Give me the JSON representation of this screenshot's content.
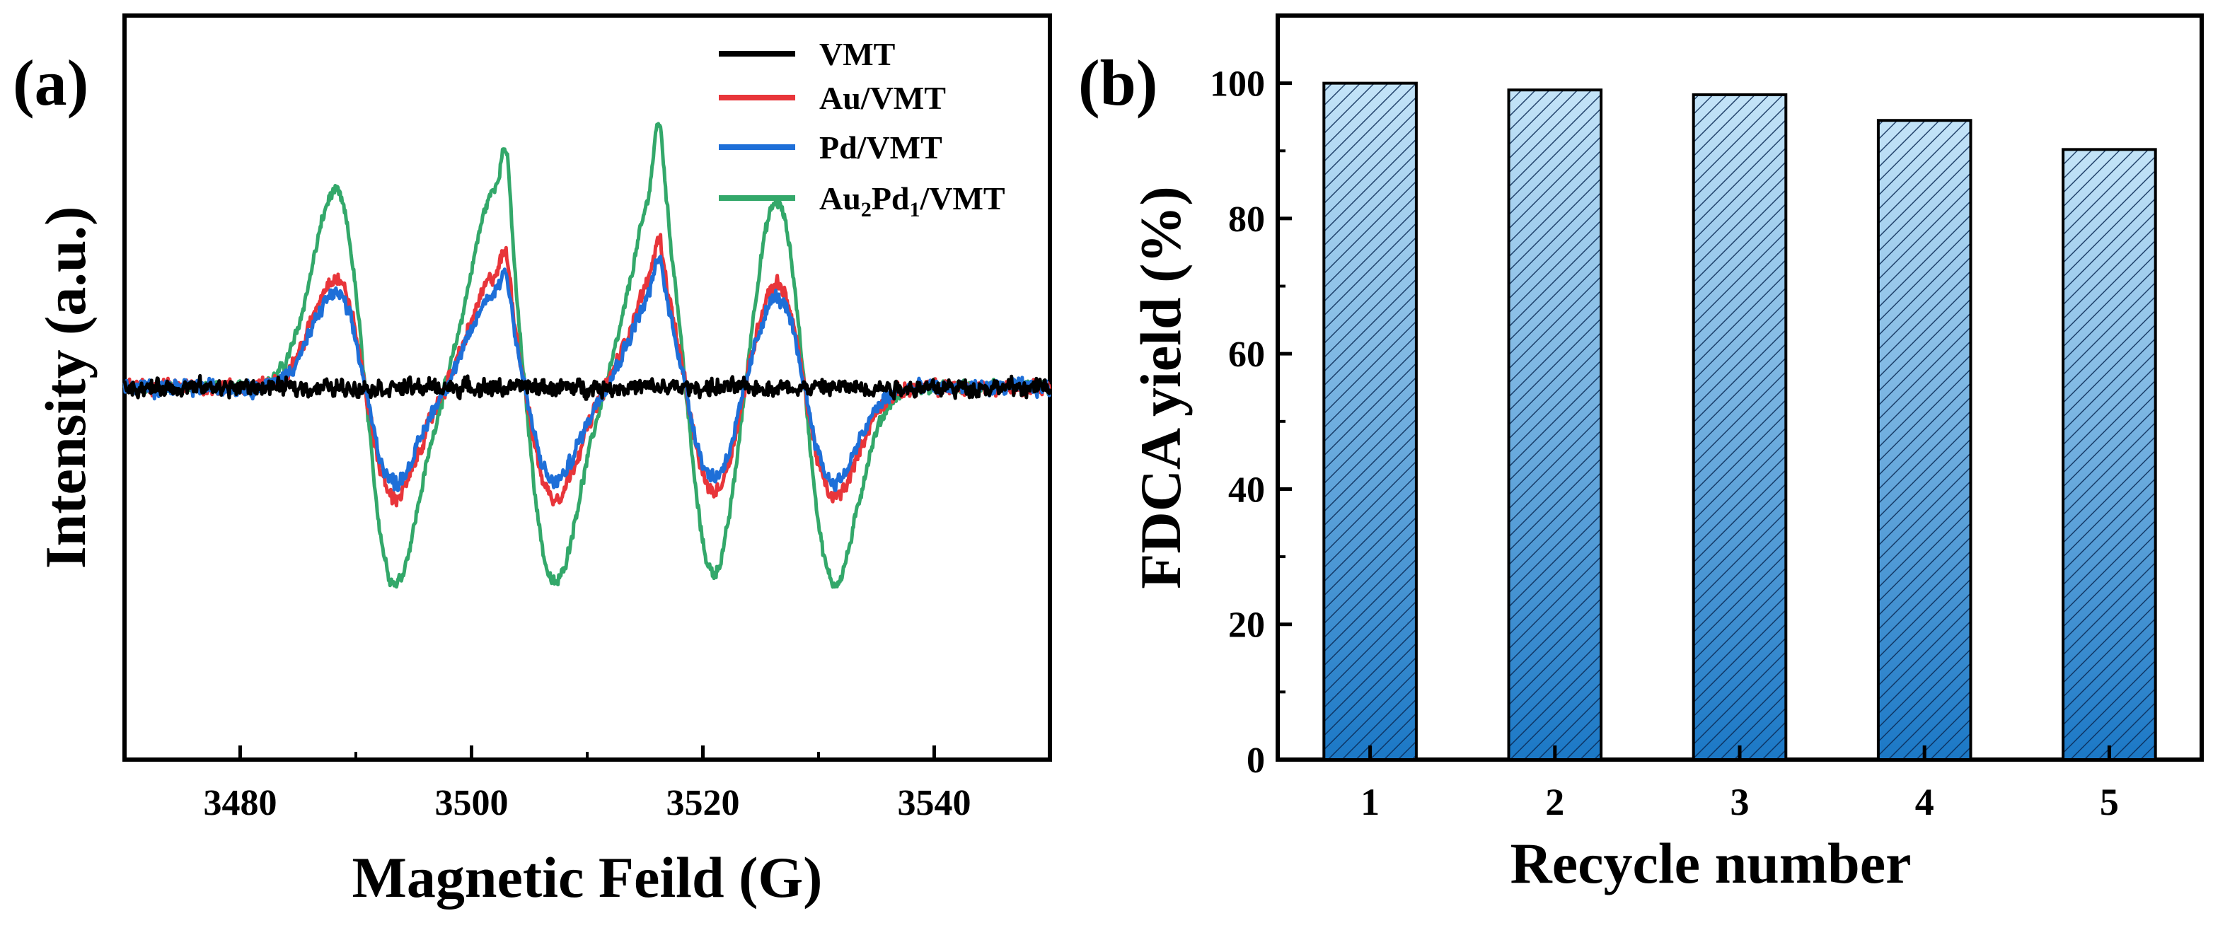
{
  "colors": {
    "vmt": "#000000",
    "au_vmt": "#e8353a",
    "pd_vmt": "#1e6fd8",
    "au2pd1_vmt": "#33a86a",
    "bar_top": "#c4e4f8",
    "bar_bottom": "#1b78c6"
  },
  "chart_data": [
    {
      "type": "line",
      "panel_label": "(a)",
      "title": "",
      "xlabel": "Magnetic Feild (G)",
      "ylabel": "Intensity (a.u.)",
      "xlim": [
        3470,
        3550
      ],
      "ylim": [
        -2.05,
        2.05
      ],
      "xticks": [
        "3480",
        "3500",
        "3520",
        "3540"
      ],
      "xtick_values": [
        3480,
        3500,
        3520,
        3540
      ],
      "grid": false,
      "legend_position": "top-right",
      "series": [
        {
          "name": "VMT",
          "name_main": "VMT",
          "name_sub1": "",
          "name_mid": "",
          "name_sub2": "",
          "name_tail": "",
          "amplitude": 0.0,
          "noise": 0.055
        },
        {
          "name": "Au/VMT",
          "name_main": "Au/VMT",
          "name_sub1": "",
          "name_mid": "",
          "name_sub2": "",
          "name_tail": "",
          "amplitude": 1.0,
          "noise": 0.05
        },
        {
          "name": "Pd/VMT",
          "name_main": "Pd/VMT",
          "name_sub1": "",
          "name_mid": "",
          "name_sub2": "",
          "name_tail": "",
          "amplitude": 0.86,
          "noise": 0.05
        },
        {
          "name": "Au2Pd1/VMT",
          "name_main": "Au",
          "name_sub1": "2",
          "name_mid": "Pd",
          "name_sub2": "1",
          "name_tail": "/VMT",
          "amplitude": 1.78,
          "noise": 0.04
        }
      ],
      "line_centers": [
        3490.8,
        3504.6,
        3518.5,
        3528.8
      ],
      "line_half_width": 2.6,
      "extra_peaks": [
        3503.0,
        3516.2
      ]
    },
    {
      "type": "bar",
      "panel_label": "(b)",
      "title": "",
      "xlabel": "Recycle number",
      "ylabel": "FDCA yield (%)",
      "categories": [
        "1",
        "2",
        "3",
        "4",
        "5"
      ],
      "values": [
        100,
        99,
        98.3,
        94.5,
        90.2
      ],
      "ylim": [
        0,
        110
      ],
      "yticks": [
        "0",
        "20",
        "40",
        "60",
        "80",
        "100"
      ],
      "ytick_values": [
        0,
        20,
        40,
        60,
        80,
        100
      ],
      "grid": false,
      "hatch": "diagonal"
    }
  ]
}
